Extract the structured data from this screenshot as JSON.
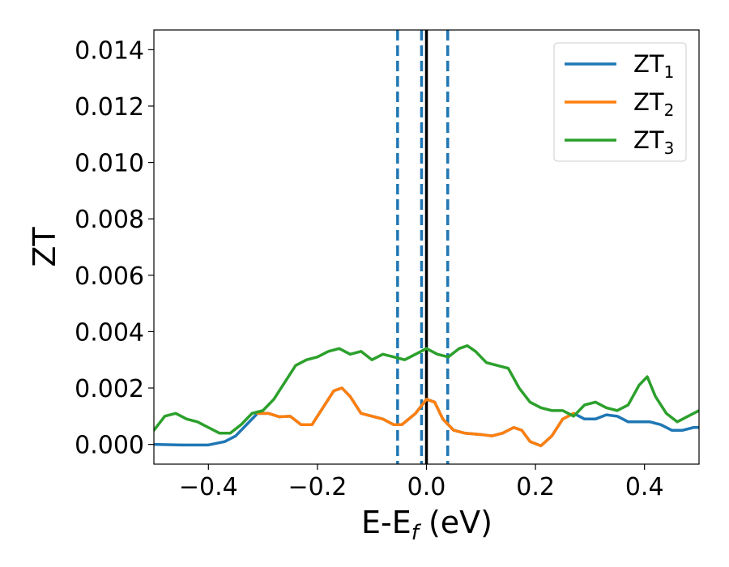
{
  "chart_data": {
    "type": "line",
    "xlabel": "E-E",
    "xlabel_sub": "f",
    "xlabel_unit": " (eV)",
    "ylabel": "ZT",
    "xlim": [
      -0.5,
      0.5
    ],
    "ylim": [
      -0.0007,
      0.0147
    ],
    "xticks": [
      -0.4,
      -0.2,
      0.0,
      0.2,
      0.4
    ],
    "xtick_labels": [
      "−0.4",
      "−0.2",
      "0.0",
      "0.2",
      "0.4"
    ],
    "yticks": [
      0.0,
      0.002,
      0.004,
      0.006,
      0.008,
      0.01,
      0.012,
      0.014
    ],
    "ytick_labels": [
      "0.000",
      "0.002",
      "0.004",
      "0.006",
      "0.008",
      "0.010",
      "0.012",
      "0.014"
    ],
    "grid": false,
    "legend_position": "top-right",
    "vlines": [
      {
        "x": 0.0,
        "style": "solid",
        "color": "#000000"
      },
      {
        "x": -0.053,
        "style": "dashed",
        "color": "#1f77b4"
      },
      {
        "x": -0.009,
        "style": "dashed",
        "color": "#1f77b4"
      },
      {
        "x": 0.039,
        "style": "dashed",
        "color": "#1f77b4"
      }
    ],
    "series": [
      {
        "name": "ZT",
        "sub": "1",
        "color": "#1f77b4",
        "points": [
          [
            -0.5,
            0.0
          ],
          [
            -0.45,
            -2e-05
          ],
          [
            -0.4,
            -2e-05
          ],
          [
            -0.37,
            0.0001
          ],
          [
            -0.35,
            0.0003
          ],
          [
            -0.33,
            0.0007
          ],
          [
            -0.31,
            0.0011
          ],
          [
            -0.29,
            0.0011
          ],
          [
            -0.27,
            0.00098
          ],
          [
            -0.25,
            0.001
          ],
          [
            -0.23,
            0.0007
          ],
          [
            -0.21,
            0.0007
          ],
          [
            -0.19,
            0.0013
          ],
          [
            -0.17,
            0.0019
          ],
          [
            -0.155,
            0.002
          ],
          [
            -0.14,
            0.0017
          ],
          [
            -0.12,
            0.0011
          ],
          [
            -0.1,
            0.001
          ],
          [
            -0.08,
            0.0009
          ],
          [
            -0.06,
            0.0007
          ],
          [
            -0.045,
            0.0007
          ],
          [
            -0.02,
            0.0011
          ],
          [
            0.0,
            0.0016
          ],
          [
            0.015,
            0.0015
          ],
          [
            0.03,
            0.0009
          ],
          [
            0.05,
            0.0005
          ],
          [
            0.07,
            0.0004
          ],
          [
            0.1,
            0.00035
          ],
          [
            0.12,
            0.0003
          ],
          [
            0.14,
            0.0004
          ],
          [
            0.16,
            0.0006
          ],
          [
            0.175,
            0.0005
          ],
          [
            0.19,
            0.0001
          ],
          [
            0.21,
            -5e-05
          ],
          [
            0.23,
            0.0003
          ],
          [
            0.25,
            0.0009
          ],
          [
            0.27,
            0.0011
          ],
          [
            0.29,
            0.0009
          ],
          [
            0.31,
            0.0009
          ],
          [
            0.33,
            0.00105
          ],
          [
            0.35,
            0.001
          ],
          [
            0.37,
            0.0008
          ],
          [
            0.39,
            0.0008
          ],
          [
            0.41,
            0.0008
          ],
          [
            0.43,
            0.0007
          ],
          [
            0.45,
            0.0005
          ],
          [
            0.47,
            0.0005
          ],
          [
            0.49,
            0.0006
          ],
          [
            0.5,
            0.0006
          ]
        ]
      },
      {
        "name": "ZT",
        "sub": "2",
        "color": "#ff7f0e",
        "points": [
          [
            -0.31,
            0.0011
          ],
          [
            -0.29,
            0.0011
          ],
          [
            -0.27,
            0.00098
          ],
          [
            -0.25,
            0.001
          ],
          [
            -0.23,
            0.0007
          ],
          [
            -0.21,
            0.0007
          ],
          [
            -0.19,
            0.0013
          ],
          [
            -0.17,
            0.0019
          ],
          [
            -0.155,
            0.002
          ],
          [
            -0.14,
            0.0017
          ],
          [
            -0.12,
            0.0011
          ],
          [
            -0.1,
            0.001
          ],
          [
            -0.08,
            0.0009
          ],
          [
            -0.06,
            0.0007
          ],
          [
            -0.045,
            0.0007
          ],
          [
            -0.02,
            0.0011
          ],
          [
            0.0,
            0.0016
          ],
          [
            0.015,
            0.0015
          ],
          [
            0.03,
            0.0009
          ],
          [
            0.05,
            0.0005
          ],
          [
            0.07,
            0.0004
          ],
          [
            0.1,
            0.00035
          ],
          [
            0.12,
            0.0003
          ],
          [
            0.14,
            0.0004
          ],
          [
            0.16,
            0.0006
          ],
          [
            0.175,
            0.0005
          ],
          [
            0.19,
            0.0001
          ],
          [
            0.21,
            -5e-05
          ],
          [
            0.23,
            0.0003
          ],
          [
            0.25,
            0.0009
          ],
          [
            0.27,
            0.0011
          ]
        ]
      },
      {
        "name": "ZT",
        "sub": "3",
        "color": "#2ca02c",
        "points": [
          [
            -0.5,
            0.0005
          ],
          [
            -0.48,
            0.001
          ],
          [
            -0.46,
            0.0011
          ],
          [
            -0.44,
            0.0009
          ],
          [
            -0.42,
            0.0008
          ],
          [
            -0.4,
            0.0006
          ],
          [
            -0.38,
            0.0004
          ],
          [
            -0.36,
            0.0004
          ],
          [
            -0.34,
            0.0007
          ],
          [
            -0.32,
            0.0011
          ],
          [
            -0.3,
            0.0012
          ],
          [
            -0.28,
            0.0016
          ],
          [
            -0.26,
            0.0022
          ],
          [
            -0.24,
            0.0028
          ],
          [
            -0.22,
            0.003
          ],
          [
            -0.2,
            0.0031
          ],
          [
            -0.18,
            0.0033
          ],
          [
            -0.16,
            0.0034
          ],
          [
            -0.14,
            0.0032
          ],
          [
            -0.12,
            0.0033
          ],
          [
            -0.1,
            0.003
          ],
          [
            -0.08,
            0.0032
          ],
          [
            -0.06,
            0.0031
          ],
          [
            -0.04,
            0.003
          ],
          [
            -0.02,
            0.0032
          ],
          [
            0.0,
            0.0034
          ],
          [
            0.02,
            0.0032
          ],
          [
            0.04,
            0.0031
          ],
          [
            0.06,
            0.0034
          ],
          [
            0.075,
            0.0035
          ],
          [
            0.09,
            0.0033
          ],
          [
            0.11,
            0.0029
          ],
          [
            0.13,
            0.0028
          ],
          [
            0.15,
            0.0027
          ],
          [
            0.17,
            0.002
          ],
          [
            0.19,
            0.0015
          ],
          [
            0.21,
            0.0013
          ],
          [
            0.23,
            0.0012
          ],
          [
            0.25,
            0.0012
          ],
          [
            0.27,
            0.001
          ],
          [
            0.29,
            0.0014
          ],
          [
            0.31,
            0.0015
          ],
          [
            0.33,
            0.0013
          ],
          [
            0.35,
            0.0012
          ],
          [
            0.37,
            0.0014
          ],
          [
            0.39,
            0.0021
          ],
          [
            0.405,
            0.0024
          ],
          [
            0.42,
            0.0017
          ],
          [
            0.44,
            0.0011
          ],
          [
            0.46,
            0.0008
          ],
          [
            0.48,
            0.001
          ],
          [
            0.5,
            0.0012
          ]
        ]
      }
    ]
  }
}
